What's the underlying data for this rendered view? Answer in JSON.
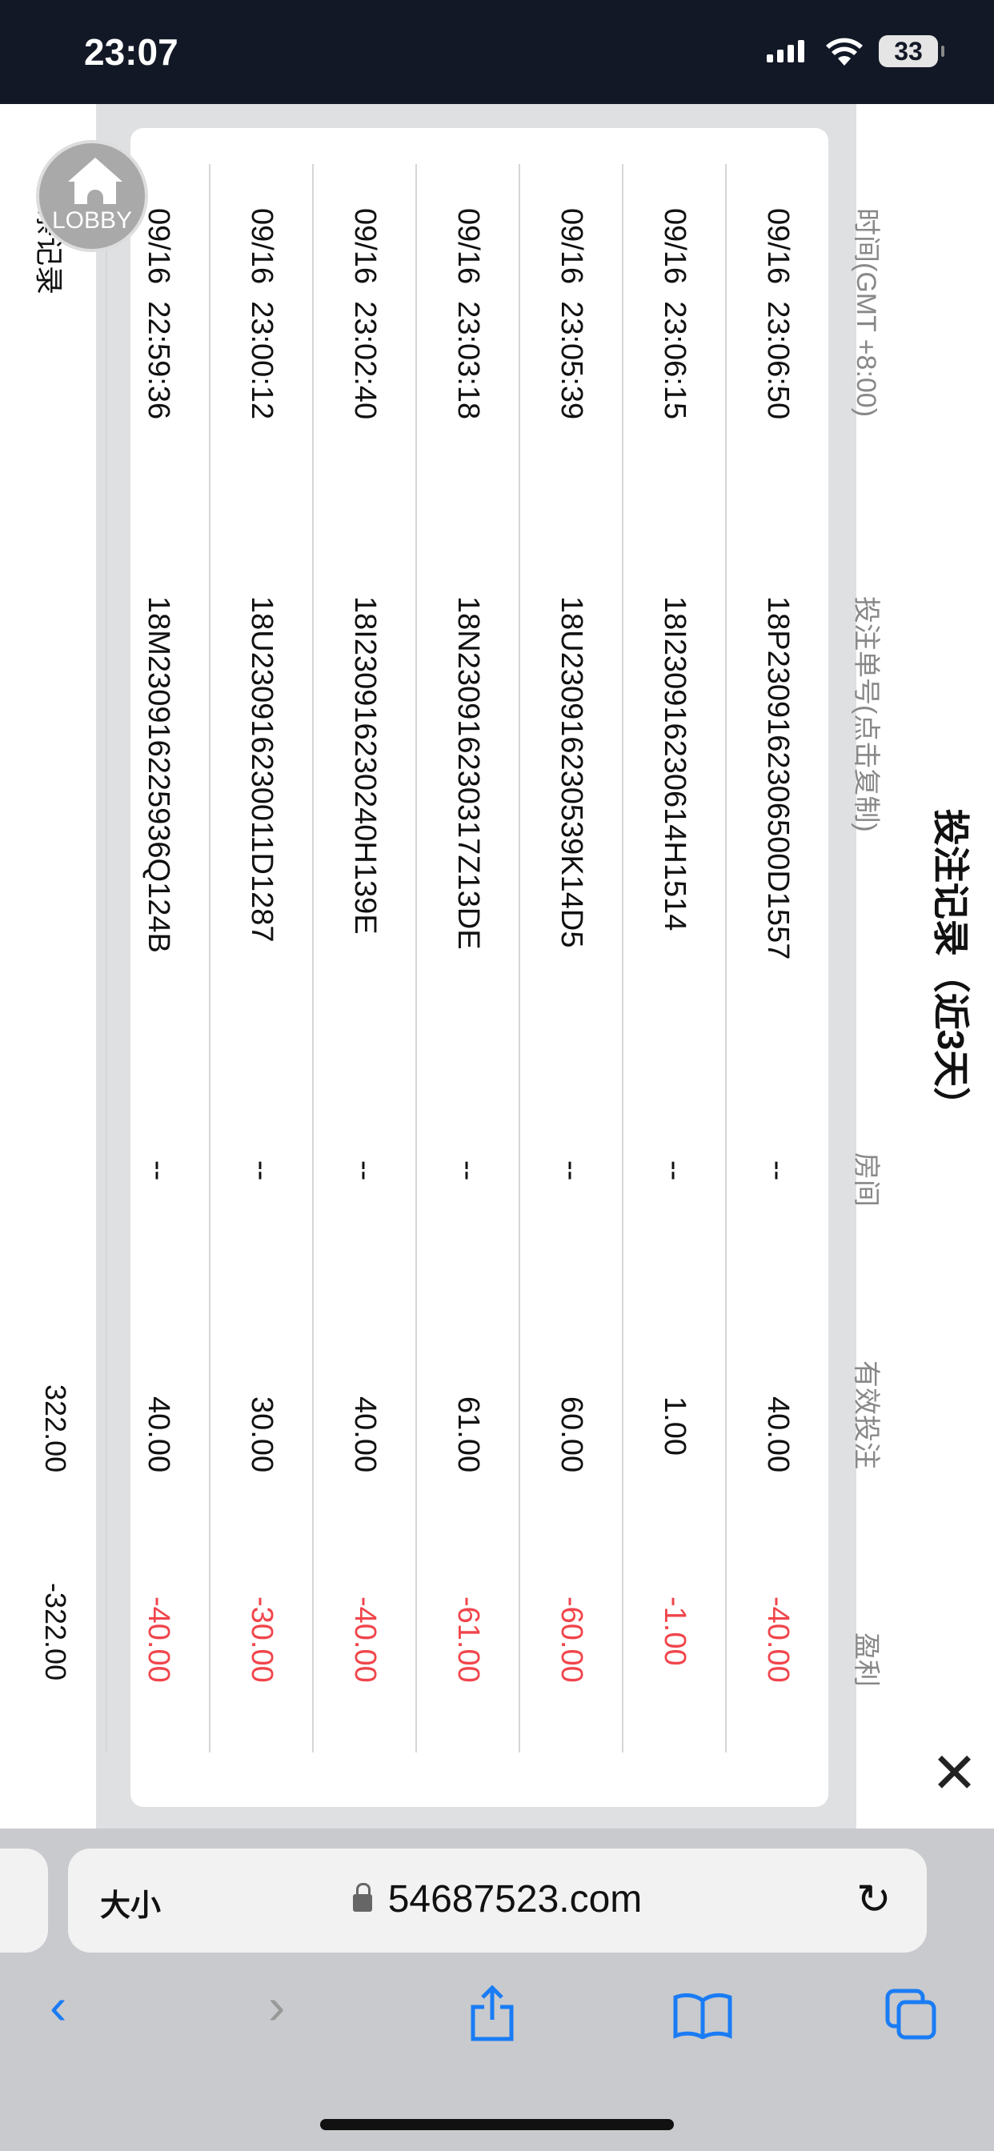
{
  "status_bar": {
    "time": "23:07",
    "battery": "33"
  },
  "modal": {
    "title": "投注记录（近3天）",
    "close_icon": "close-icon",
    "columns": [
      "时间(GMT +8:00)",
      "投注单号(点击复制)",
      "房间",
      "有效投注",
      "盈利"
    ],
    "rows": [
      {
        "time": "09/16  23:06:50",
        "order": "18P2309162306500D1557",
        "room": "--",
        "bet": "40.00",
        "profit": "-40.00"
      },
      {
        "time": "09/16  23:06:15",
        "order": "18I230916230614H1514",
        "room": "--",
        "bet": "1.00",
        "profit": "-1.00"
      },
      {
        "time": "09/16  23:05:39",
        "order": "18U230916230539K14D5",
        "room": "--",
        "bet": "60.00",
        "profit": "-60.00"
      },
      {
        "time": "09/16  23:03:18",
        "order": "18N230916230317Z13DE",
        "room": "--",
        "bet": "61.00",
        "profit": "-61.00"
      },
      {
        "time": "09/16  23:02:40",
        "order": "18I230916230240H139E",
        "room": "--",
        "bet": "40.00",
        "profit": "-40.00"
      },
      {
        "time": "09/16  23:00:12",
        "order": "18U230916230011D1287",
        "room": "--",
        "bet": "30.00",
        "profit": "-30.00"
      },
      {
        "time": "09/16  22:59:36",
        "order": "18M230916225936Q124B",
        "room": "--",
        "bet": "40.00",
        "profit": "-40.00"
      }
    ],
    "footer": {
      "count": "8条记录",
      "total_bet": "322.00",
      "total_profit": "-322.00"
    },
    "profit_color": "#f0454b"
  },
  "lobby_button": {
    "label": "LOBBY"
  },
  "browser": {
    "text_size": "大小",
    "domain": "54687523.com",
    "accent": "#1a7cf5"
  }
}
